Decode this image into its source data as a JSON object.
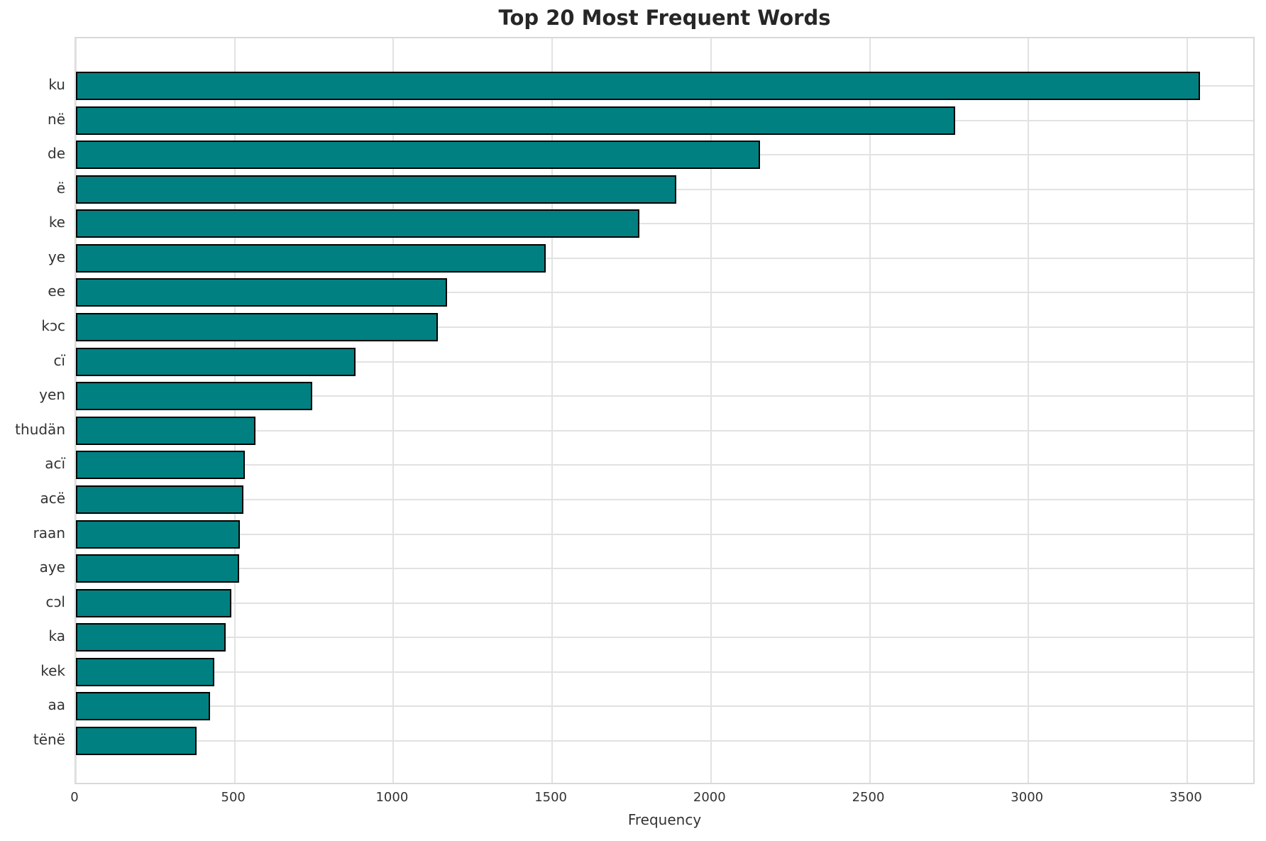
{
  "chart_data": {
    "type": "bar",
    "orientation": "horizontal",
    "title": "Top 20 Most Frequent Words",
    "xlabel": "Frequency",
    "ylabel": "",
    "categories": [
      "ku",
      "në",
      "de",
      "ë",
      "ke",
      "ye",
      "ee",
      "kɔc",
      "cï",
      "yen",
      "thudän",
      "acï",
      "acë",
      "raan",
      "aye",
      "cɔl",
      "ka",
      "kek",
      "aa",
      "tënë"
    ],
    "values": [
      3540,
      2770,
      2155,
      1890,
      1775,
      1480,
      1170,
      1140,
      880,
      745,
      565,
      533,
      527,
      516,
      513,
      489,
      471,
      435,
      422,
      379
    ],
    "x_ticks": [
      0,
      500,
      1000,
      1500,
      2000,
      2500,
      3000,
      3500
    ],
    "xlim": [
      0,
      3717
    ],
    "grid": true,
    "legend": "none",
    "bar_color": "#008080",
    "bar_edge_color": "#000000",
    "grid_color": "#e2e2e2",
    "background_color": "#ffffff"
  }
}
